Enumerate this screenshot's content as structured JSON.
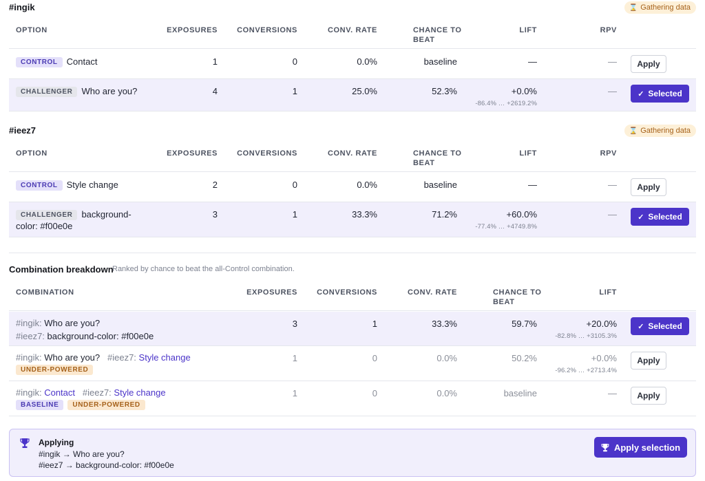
{
  "experiments": [
    {
      "title": "#ingik",
      "status": "Gathering data",
      "headers": {
        "option": "OPTION",
        "exposures": "EXPOSURES",
        "conversions": "CONVERSIONS",
        "conv_rate": "CONV. RATE",
        "chance_1": "CHANCE TO",
        "chance_2": "BEAT",
        "lift": "LIFT",
        "rpv": "RPV"
      },
      "rows": [
        {
          "tag": "CONTROL",
          "label": "Contact",
          "exposures": "1",
          "conversions": "0",
          "conv_rate": "0.0%",
          "chance": "baseline",
          "lift": "—",
          "lift_ci": "",
          "rpv": "—",
          "action": "Apply"
        },
        {
          "tag": "CHALLENGER",
          "label": "Who are you?",
          "exposures": "4",
          "conversions": "1",
          "conv_rate": "25.0%",
          "chance": "52.3%",
          "lift": "+0.0%",
          "lift_ci": "-86.4% … +2619.2%",
          "rpv": "—",
          "action": "Selected"
        }
      ]
    },
    {
      "title": "#ieez7",
      "status": "Gathering data",
      "headers": {
        "option": "OPTION",
        "exposures": "EXPOSURES",
        "conversions": "CONVERSIONS",
        "conv_rate": "CONV. RATE",
        "chance_1": "CHANCE TO",
        "chance_2": "BEAT",
        "lift": "LIFT",
        "rpv": "RPV"
      },
      "rows": [
        {
          "tag": "CONTROL",
          "label": "Style change",
          "exposures": "2",
          "conversions": "0",
          "conv_rate": "0.0%",
          "chance": "baseline",
          "lift": "—",
          "lift_ci": "",
          "rpv": "—",
          "action": "Apply"
        },
        {
          "tag": "CHALLENGER",
          "label_1": "background-",
          "label_2": "color: #f00e0e",
          "exposures": "3",
          "conversions": "1",
          "conv_rate": "33.3%",
          "chance": "71.2%",
          "lift": "+60.0%",
          "lift_ci": "-77.4% … +4749.8%",
          "rpv": "—",
          "action": "Selected"
        }
      ]
    }
  ],
  "breakdown": {
    "title": "Combination breakdown",
    "subtitle": "Ranked by chance to beat the all-Control combination.",
    "headers": {
      "combination": "COMBINATION",
      "exposures": "EXPOSURES",
      "conversions": "CONVERSIONS",
      "conv_rate": "CONV. RATE",
      "chance_1": "CHANCE TO",
      "chance_2": "BEAT",
      "lift": "LIFT"
    },
    "rows": [
      {
        "p1": "#ingik:",
        "v1": "Who are you?",
        "p2": "#ieez7:",
        "v2": "background-color: #f00e0e",
        "exposures": "3",
        "conversions": "1",
        "conv_rate": "33.3%",
        "chance": "59.7%",
        "lift": "+20.0%",
        "lift_ci": "-82.8% … +3105.3%",
        "action": "Selected"
      },
      {
        "p1": "#ingik:",
        "v1": "Who are you?",
        "p2": "#ieez7:",
        "v2": "Style change",
        "badges": [
          "UNDER-POWERED"
        ],
        "exposures": "1",
        "conversions": "0",
        "conv_rate": "0.0%",
        "chance": "50.2%",
        "lift": "+0.0%",
        "lift_ci": "-96.2% … +2713.4%",
        "action": "Apply"
      },
      {
        "p1": "#ingik:",
        "v1": "Contact",
        "p2": "#ieez7:",
        "v2": "Style change",
        "badges": [
          "BASELINE",
          "UNDER-POWERED"
        ],
        "exposures": "1",
        "conversions": "0",
        "conv_rate": "0.0%",
        "chance": "baseline",
        "lift": "—",
        "lift_ci": "",
        "action": "Apply"
      }
    ]
  },
  "applying": {
    "title": "Applying",
    "lines": [
      "#ingik → Who are you?",
      "#ieez7 → background-color: #f00e0e"
    ],
    "button": "Apply selection"
  },
  "colors": {
    "accent": "#4b34c9",
    "selected_row": "#f1effc",
    "badge_warn": "#fdf0d8"
  },
  "icons": {
    "status": "hourglass-icon",
    "selected": "check-icon",
    "applying": "trophy-icon"
  }
}
